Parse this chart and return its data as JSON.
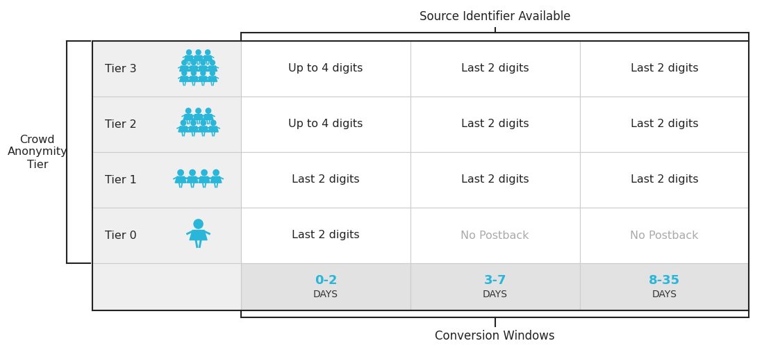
{
  "title_top": "Source Identifier Available",
  "title_bottom": "Conversion Windows",
  "left_label_lines": [
    "Crowd",
    "Anonymity",
    "Tier"
  ],
  "tiers": [
    "Tier 3",
    "Tier 2",
    "Tier 1",
    "Tier 0"
  ],
  "col_day_labels": [
    "0-2",
    "3-7",
    "8-35"
  ],
  "col_day_suffix": "DAYS",
  "cell_data": [
    [
      "Up to 4 digits",
      "Last 2 digits",
      "Last 2 digits"
    ],
    [
      "Up to 4 digits",
      "Last 2 digits",
      "Last 2 digits"
    ],
    [
      "Last 2 digits",
      "Last 2 digits",
      "Last 2 digits"
    ],
    [
      "Last 2 digits",
      "No Postback",
      "No Postback"
    ]
  ],
  "no_postback_color": "#aaaaaa",
  "normal_text_color": "#222222",
  "day_number_color": "#29b6d8",
  "day_text_color": "#333333",
  "bg_color": "#ffffff",
  "icon_color": "#29b6d8",
  "grid_color": "#cccccc",
  "border_color": "#222222",
  "row_bg": "#efefef",
  "cell_bg": "#ffffff",
  "footer_bg": "#e2e2e2"
}
